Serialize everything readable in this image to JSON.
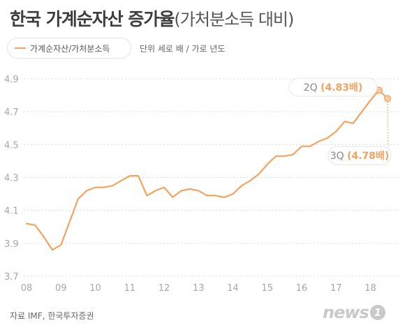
{
  "header": {
    "title_main": "한국 가계순자산 증가율",
    "title_sub": "(가처분소득 대비)"
  },
  "legend": {
    "label": "가계순자산/가처분소득",
    "unit_note": "단위 세로 배 / 가로 년도"
  },
  "footer": {
    "source": "자료 IMF, 한국투자증권",
    "logo_text": "news",
    "logo_badge": "1"
  },
  "chart_data": {
    "type": "line",
    "title": "한국 가계순자산 증가율(가처분소득 대비)",
    "xlabel": "",
    "ylabel": "",
    "x_ticks": [
      "08",
      "09",
      "10",
      "11",
      "12",
      "13",
      "14",
      "15",
      "16",
      "17",
      "18"
    ],
    "y_ticks": [
      "3.7",
      "3.9",
      "4.1",
      "4.3",
      "4.5",
      "4.7",
      "4.9"
    ],
    "ylim": [
      3.7,
      4.9
    ],
    "xlim": [
      2008.0,
      2018.75
    ],
    "grid": "horizontal dashed",
    "legend_position": "top-left",
    "line_color": "#f2a35f",
    "series": [
      {
        "name": "가계순자산/가처분소득",
        "x": [
          2008.0,
          2008.25,
          2008.5,
          2008.75,
          2009.0,
          2009.25,
          2009.5,
          2009.75,
          2010.0,
          2010.25,
          2010.5,
          2010.75,
          2011.0,
          2011.25,
          2011.5,
          2011.75,
          2012.0,
          2012.25,
          2012.5,
          2012.75,
          2013.0,
          2013.25,
          2013.5,
          2013.75,
          2014.0,
          2014.25,
          2014.5,
          2014.75,
          2015.0,
          2015.25,
          2015.5,
          2015.75,
          2016.0,
          2016.25,
          2016.5,
          2016.75,
          2017.0,
          2017.25,
          2017.5,
          2017.75,
          2018.0,
          2018.25,
          2018.5
        ],
        "y": [
          4.02,
          4.01,
          3.94,
          3.86,
          3.89,
          4.03,
          4.17,
          4.22,
          4.24,
          4.24,
          4.25,
          4.28,
          4.31,
          4.31,
          4.19,
          4.22,
          4.24,
          4.18,
          4.22,
          4.23,
          4.22,
          4.19,
          4.19,
          4.18,
          4.2,
          4.25,
          4.28,
          4.32,
          4.38,
          4.43,
          4.43,
          4.44,
          4.49,
          4.49,
          4.52,
          4.54,
          4.58,
          4.64,
          4.63,
          4.7,
          4.77,
          4.83,
          4.78
        ]
      }
    ],
    "annotations": [
      {
        "label": "2Q",
        "value_text": "(4.83배)",
        "x": 2018.25,
        "y": 4.83,
        "color": "#f2a35f"
      },
      {
        "label": "3Q",
        "value_text": "(4.78배)",
        "x": 2018.5,
        "y": 4.78,
        "color": "#f2a35f"
      }
    ]
  }
}
